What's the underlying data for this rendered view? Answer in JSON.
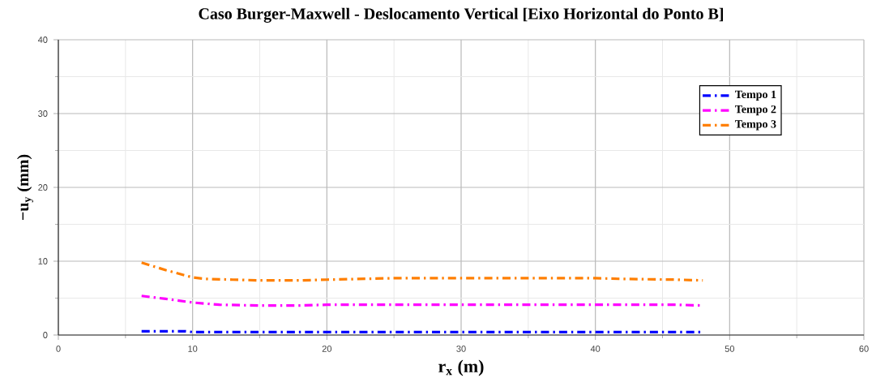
{
  "chart_data": {
    "type": "line",
    "title": "Caso Burger-Maxwell - Deslocamento Vertical [Eixo Horizontal do Ponto B]",
    "xlabel": "r$_{x}$ (m)",
    "ylabel": "−u$_{y}$ (mm)",
    "series": [
      {
        "name": "Tempo 1",
        "color": "#0000ff",
        "x": [
          6.2,
          8,
          9.5,
          10,
          15,
          20,
          30,
          40,
          48
        ],
        "values": [
          0.5,
          0.5,
          0.5,
          0.4,
          0.4,
          0.4,
          0.4,
          0.4,
          0.4
        ]
      },
      {
        "name": "Tempo 2",
        "color": "#ff00ff",
        "x": [
          6.2,
          8,
          10,
          12,
          15,
          18,
          20,
          30,
          40,
          46,
          48
        ],
        "values": [
          5.3,
          4.9,
          4.4,
          4.1,
          4.0,
          4.0,
          4.1,
          4.1,
          4.1,
          4.1,
          4.0
        ]
      },
      {
        "name": "Tempo 3",
        "color": "#ff7f00",
        "x": [
          6.2,
          8,
          10,
          11,
          13,
          15,
          18,
          20,
          25,
          30,
          35,
          40,
          42,
          46,
          48
        ],
        "values": [
          9.8,
          8.8,
          7.8,
          7.6,
          7.5,
          7.4,
          7.4,
          7.5,
          7.7,
          7.7,
          7.7,
          7.7,
          7.6,
          7.5,
          7.4
        ]
      }
    ],
    "xlim": [
      0,
      60
    ],
    "xticks": [
      0,
      10,
      20,
      30,
      40,
      50,
      60
    ],
    "ylim": [
      0,
      40
    ],
    "yticks": [
      0,
      10,
      20,
      30,
      40
    ],
    "grid": true,
    "legend": "top right",
    "line_style": "dashdot",
    "marker": "none"
  }
}
